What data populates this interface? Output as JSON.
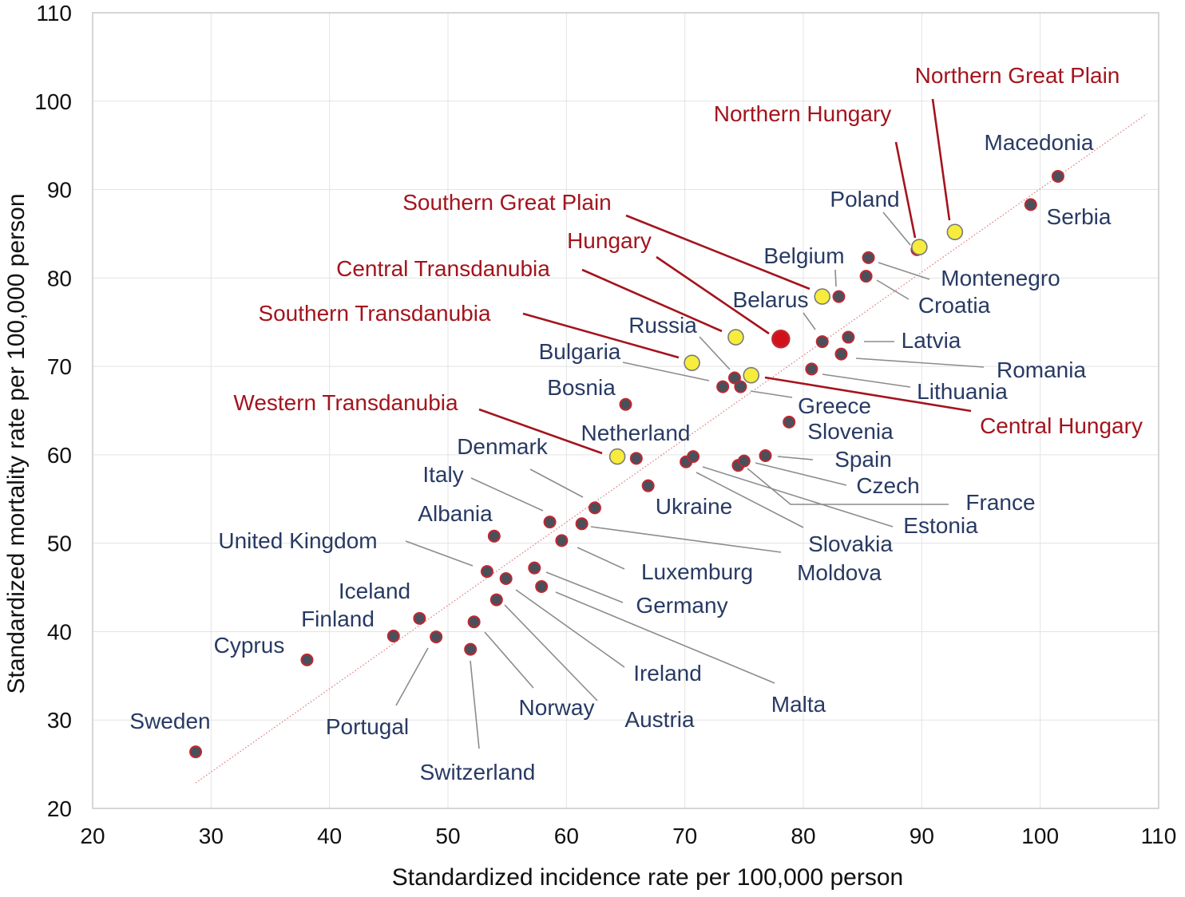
{
  "chart_data": {
    "type": "scatter",
    "xlabel": "Standardized incidence rate per 100,000 person",
    "ylabel": "Standardized mortality rate per 100,000 person",
    "xlim": [
      20,
      110
    ],
    "ylim": [
      20,
      110
    ],
    "x_ticks": [
      "20",
      "30",
      "40",
      "50",
      "60",
      "70",
      "80",
      "90",
      "100",
      "110"
    ],
    "y_ticks": [
      "20",
      "30",
      "40",
      "50",
      "60",
      "70",
      "80",
      "90",
      "100",
      "110"
    ],
    "grid": true,
    "trendline": {
      "x": [
        28.5,
        101.5
      ],
      "y": [
        22.7,
        91.5
      ],
      "style": "dotted",
      "color": "#e08080"
    },
    "colors": {
      "country_fill": "#4a4f5c",
      "country_edge": "#c0282f",
      "region_fill": "#f7ec3c",
      "region_edge": "#7a7a7a",
      "hungary_fill": "#d1121b",
      "country_label": "#283a63",
      "region_label": "#a3141d",
      "country_leader": "#8c8c8c",
      "region_leader": "#a3141d"
    },
    "points": [
      {
        "label": "Sweden",
        "x": 28.7,
        "y": 26.4,
        "group": "country"
      },
      {
        "label": "Cyprus",
        "x": 38.1,
        "y": 36.8,
        "group": "country"
      },
      {
        "label": "Finland",
        "x": 45.4,
        "y": 39.5,
        "group": "country"
      },
      {
        "label": "Iceland",
        "x": 47.6,
        "y": 41.5,
        "group": "country"
      },
      {
        "label": "Portugal",
        "x": 49.0,
        "y": 39.4,
        "group": "country"
      },
      {
        "label": "Switzerland",
        "x": 51.9,
        "y": 38.0,
        "group": "country"
      },
      {
        "label": "Norway",
        "x": 52.2,
        "y": 41.1,
        "group": "country"
      },
      {
        "label": "United Kingdom",
        "x": 53.3,
        "y": 46.8,
        "group": "country"
      },
      {
        "label": "Albania",
        "x": 53.9,
        "y": 50.8,
        "group": "country"
      },
      {
        "label": "Austria",
        "x": 54.1,
        "y": 43.6,
        "group": "country"
      },
      {
        "label": "Ireland",
        "x": 54.9,
        "y": 46.0,
        "group": "country"
      },
      {
        "label": "Germany",
        "x": 57.3,
        "y": 47.2,
        "group": "country"
      },
      {
        "label": "Malta",
        "x": 57.9,
        "y": 45.1,
        "group": "country"
      },
      {
        "label": "Italy",
        "x": 58.6,
        "y": 52.4,
        "group": "country"
      },
      {
        "label": "Luxemburg",
        "x": 59.6,
        "y": 50.3,
        "group": "country"
      },
      {
        "label": "Moldova",
        "x": 61.3,
        "y": 52.2,
        "group": "country"
      },
      {
        "label": "Denmark",
        "x": 62.4,
        "y": 54.0,
        "group": "country"
      },
      {
        "label": "Netherland",
        "x": 65.9,
        "y": 59.6,
        "group": "country"
      },
      {
        "label": "Bosnia",
        "x": 65.0,
        "y": 65.7,
        "group": "country"
      },
      {
        "label": "Ukraine",
        "x": 66.9,
        "y": 56.5,
        "group": "country"
      },
      {
        "label": "Slovakia",
        "x": 70.1,
        "y": 59.2,
        "group": "country"
      },
      {
        "label": "Estonia",
        "x": 70.7,
        "y": 59.8,
        "group": "country"
      },
      {
        "label": "Bulgaria",
        "x": 73.2,
        "y": 67.7,
        "group": "country"
      },
      {
        "label": "Russia",
        "x": 74.2,
        "y": 68.7,
        "group": "country"
      },
      {
        "label": "Greece",
        "x": 74.7,
        "y": 67.7,
        "group": "country"
      },
      {
        "label": "France",
        "x": 74.5,
        "y": 58.8,
        "group": "country"
      },
      {
        "label": "Czech",
        "x": 75.0,
        "y": 59.3,
        "group": "country"
      },
      {
        "label": "Spain",
        "x": 76.8,
        "y": 59.9,
        "group": "country"
      },
      {
        "label": "Slovenia",
        "x": 78.8,
        "y": 63.7,
        "group": "country"
      },
      {
        "label": "Lithuania",
        "x": 80.7,
        "y": 69.7,
        "group": "country"
      },
      {
        "label": "Belarus",
        "x": 81.6,
        "y": 72.8,
        "group": "country"
      },
      {
        "label": "Belgium",
        "x": 83.0,
        "y": 77.9,
        "group": "country"
      },
      {
        "label": "Romania",
        "x": 83.2,
        "y": 71.4,
        "group": "country"
      },
      {
        "label": "Latvia",
        "x": 83.8,
        "y": 73.3,
        "group": "country"
      },
      {
        "label": "Croatia",
        "x": 85.3,
        "y": 80.2,
        "group": "country"
      },
      {
        "label": "Montenegro",
        "x": 85.5,
        "y": 82.3,
        "group": "country"
      },
      {
        "label": "Poland",
        "x": 89.6,
        "y": 83.2,
        "group": "country"
      },
      {
        "label": "Serbia",
        "x": 99.2,
        "y": 88.3,
        "group": "country"
      },
      {
        "label": "Macedonia",
        "x": 101.5,
        "y": 91.5,
        "group": "country"
      },
      {
        "label": "Western Transdanubia",
        "x": 64.3,
        "y": 59.8,
        "group": "region"
      },
      {
        "label": "Southern Transdanubia",
        "x": 70.6,
        "y": 70.4,
        "group": "region"
      },
      {
        "label": "Central Transdanubia",
        "x": 74.3,
        "y": 73.3,
        "group": "region"
      },
      {
        "label": "Central Hungary",
        "x": 75.6,
        "y": 69.0,
        "group": "region"
      },
      {
        "label": "Southern Great Plain",
        "x": 81.6,
        "y": 77.9,
        "group": "region"
      },
      {
        "label": "Northern Hungary",
        "x": 89.8,
        "y": 83.5,
        "group": "region"
      },
      {
        "label": "Northern Great Plain",
        "x": 92.8,
        "y": 85.2,
        "group": "region"
      },
      {
        "label": "Hungary",
        "x": 78.1,
        "y": 73.1,
        "group": "hungary"
      }
    ]
  }
}
